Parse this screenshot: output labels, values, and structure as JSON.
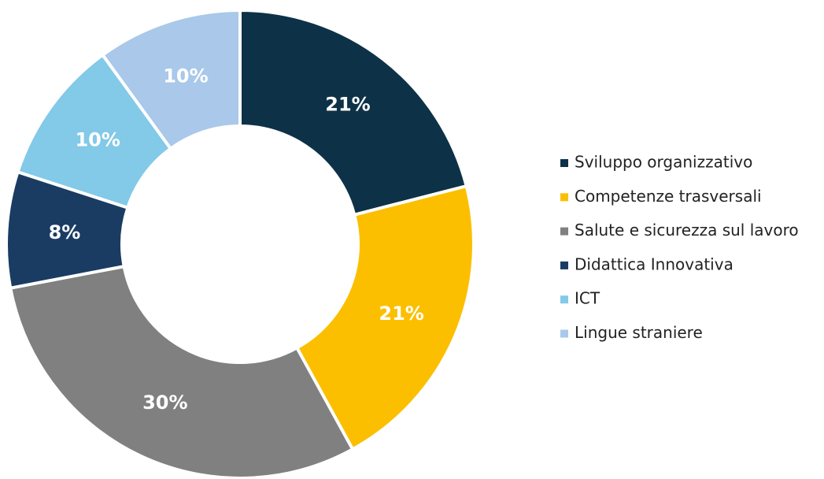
{
  "chart_data": {
    "type": "pie",
    "donut": true,
    "categories": [
      "Sviluppo organizzativo",
      "Competenze trasversali",
      "Salute e sicurezza sul lavoro",
      "Didattica Innovativa",
      "ICT",
      "Lingue straniere"
    ],
    "values": [
      21,
      21,
      30,
      8,
      10,
      10
    ],
    "value_labels": [
      "21%",
      "21%",
      "30%",
      "8%",
      "10%",
      "10%"
    ],
    "colors": [
      "#0d3247",
      "#fbbf00",
      "#808080",
      "#1a3c63",
      "#83c9e8",
      "#a9c8ea"
    ],
    "legend": "right"
  }
}
